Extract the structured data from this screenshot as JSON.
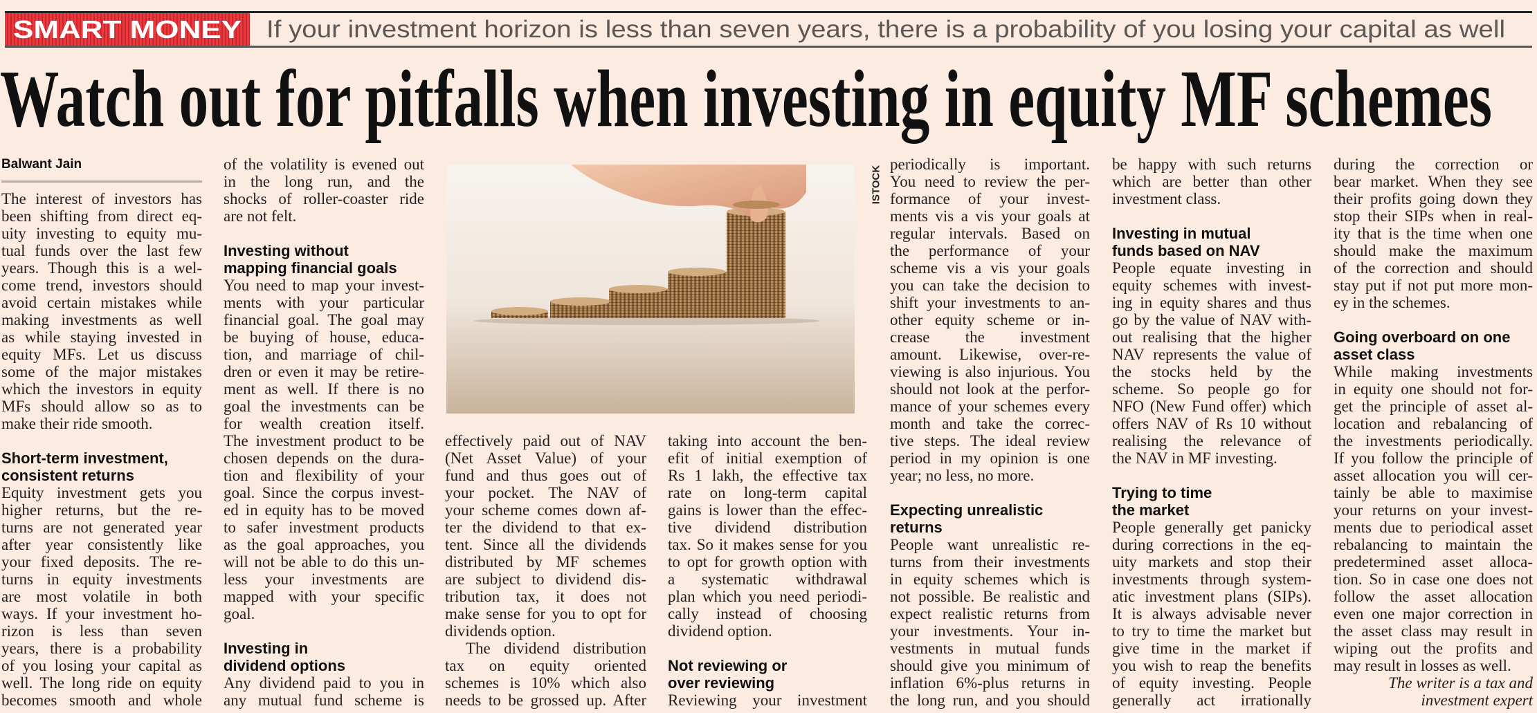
{
  "header": {
    "kicker": "SMART MONEY",
    "deck": "If your investment horizon is less than seven years, there is a probability of you losing your capital as well",
    "kicker_color": "#e8383d"
  },
  "headline": "Watch out for pitfalls when investing in equity MF schemes",
  "photo": {
    "credit": "ISTOCK",
    "description_icon": "coin-stacks-hand-photo"
  },
  "columns": [
    {
      "blocks": [
        {
          "type": "byline",
          "lines": [
            "Balwant Jain"
          ]
        },
        {
          "type": "rule"
        },
        {
          "type": "p",
          "lines": [
            "The interest of investors has",
            "been shifting from direct eq-",
            "uity investing to equity mu-",
            "tual funds over the last few",
            "years. Though this is a wel-",
            "come trend, investors should",
            "avoid certain mistakes while",
            "making investments as well",
            "as while staying invested in",
            "equity MFs. Let us discuss",
            "some of the major mistakes",
            "which the investors in equity",
            "MFs should allow so as to",
            "make their ride smooth."
          ]
        },
        {
          "type": "gap"
        },
        {
          "type": "h",
          "lines": [
            "Short-term investment,",
            "consistent returns"
          ]
        },
        {
          "type": "p",
          "cont": true,
          "lines": [
            "Equity investment gets you",
            "higher returns, but the re-",
            "turns are not generated year",
            "after year consistently like",
            "your fixed deposits. The re-",
            "turns in equity investments",
            "are most volatile in both",
            "ways. If your investment ho-",
            "rizon is less than seven",
            "years, there is a probability",
            "of you losing your capital as",
            "well. The long ride on equity",
            "becomes smooth and whole"
          ]
        }
      ]
    },
    {
      "blocks": [
        {
          "type": "p",
          "lines": [
            "of the volatility is evened out",
            "in the long run, and the",
            "shocks of roller-coaster ride",
            "are not felt."
          ]
        },
        {
          "type": "gap"
        },
        {
          "type": "h",
          "lines": [
            "Investing without",
            "mapping financial goals"
          ]
        },
        {
          "type": "p",
          "lines": [
            "You need to map your invest-",
            "ments with your particular",
            "financial goal. The goal may",
            "be buying of house, educa-",
            "tion, and marriage of chil-",
            "dren or even it may be retire-",
            "ment as well. If there is no",
            "goal the investments can be",
            "for wealth creation itself.",
            "The investment product to be",
            "chosen depends on the dura-",
            "tion and flexibility of your",
            "goal. Since the corpus invest-",
            "ed in equity has to be moved",
            "to safer investment products",
            "as the goal approaches, you",
            "will not be able to do this un-",
            "less your investments are",
            "mapped with your specific",
            "goal."
          ]
        },
        {
          "type": "gap"
        },
        {
          "type": "h",
          "lines": [
            "Investing in",
            "dividend options"
          ]
        },
        {
          "type": "p",
          "cont": true,
          "lines": [
            "Any dividend paid to you in",
            "any mutual fund scheme is"
          ]
        }
      ]
    },
    {
      "blocks": [
        {
          "type": "p",
          "lines": [
            "effectively paid out of NAV",
            "(Net Asset Value) of your",
            "fund and thus goes out of",
            "your pocket. The NAV of",
            "your scheme comes down af-",
            "ter the dividend to that ex-",
            "tent. Since all the dividends",
            "distributed by MF schemes",
            "are subject to dividend dis-",
            "tribution tax, it does not",
            "make sense for you to opt for",
            "dividends option."
          ]
        },
        {
          "type": "p",
          "indent": true,
          "cont": true,
          "lines": [
            "The dividend distribution",
            "tax on equity oriented",
            "schemes is 10% which also",
            "needs to be grossed up. After"
          ]
        }
      ]
    },
    {
      "blocks": [
        {
          "type": "p",
          "lines": [
            "taking into account the ben-",
            "efit of initial exemption of",
            "Rs 1 lakh, the effective tax",
            "rate on long-term capital",
            "gains is lower than the effec-",
            "tive dividend distribution",
            "tax. So it makes sense for you",
            "to opt for growth option with",
            "a systematic withdrawal",
            "plan which you need periodi-",
            "cally instead of choosing",
            "dividend option."
          ]
        },
        {
          "type": "gap"
        },
        {
          "type": "h",
          "lines": [
            "Not reviewing or",
            "over reviewing"
          ]
        },
        {
          "type": "p",
          "cont": true,
          "lines": [
            "Reviewing your investment"
          ]
        }
      ]
    },
    {
      "blocks": [
        {
          "type": "p",
          "lines": [
            "periodically is important.",
            "You need to review the per-",
            "formance of your invest-",
            "ments vis a vis your goals at",
            "regular intervals. Based on",
            "the performance of your",
            "scheme vis a vis your goals",
            "you can take the decision to",
            "shift your investments to an-",
            "other equity scheme or in-",
            "crease the investment",
            "amount. Likewise, over-re-",
            "viewing is also injurious. You",
            "should not look at the perfor-",
            "mance of your schemes every",
            "month and take the correc-",
            "tive steps. The ideal review",
            "period in my opinion is one",
            "year; no less, no more."
          ]
        },
        {
          "type": "gap"
        },
        {
          "type": "h",
          "lines": [
            "Expecting unrealistic",
            "returns"
          ]
        },
        {
          "type": "p",
          "cont": true,
          "lines": [
            "People want unrealistic re-",
            "turns from their investments",
            "in equity schemes which is",
            "not possible. Be realistic and",
            "expect realistic returns from",
            "your investments. Your in-",
            "vestments in mutual funds",
            "should give you minimum of",
            "inflation 6%-plus returns in",
            "the long run, and you should"
          ]
        }
      ]
    },
    {
      "blocks": [
        {
          "type": "p",
          "lines": [
            "be happy with such returns",
            "which are better than other",
            "investment class."
          ]
        },
        {
          "type": "gap"
        },
        {
          "type": "h",
          "lines": [
            "Investing in mutual",
            "funds based on NAV"
          ]
        },
        {
          "type": "p",
          "lines": [
            "People equate investing in",
            "equity schemes with invest-",
            "ing in equity shares and thus",
            "go by the value of NAV with-",
            "out realising that the higher",
            "NAV represents the value of",
            "the stocks held by the",
            "scheme. So people go for",
            "NFO (New Fund offer) which",
            "offers NAV of Rs 10 without",
            "realising the relevance of",
            "the NAV in MF investing."
          ]
        },
        {
          "type": "gap"
        },
        {
          "type": "h",
          "lines": [
            "Trying to time",
            "the market"
          ]
        },
        {
          "type": "p",
          "cont": true,
          "lines": [
            "People generally get panicky",
            "during corrections in the eq-",
            "uity markets and stop their",
            "investments through system-",
            "atic investment plans (SIPs).",
            "It is always advisable never",
            "to try to time the market but",
            "give time in the market if",
            "you wish to reap the benefits",
            "of equity investing. People",
            "generally act irrationally"
          ]
        }
      ]
    },
    {
      "blocks": [
        {
          "type": "p",
          "lines": [
            "during the correction or",
            "bear market. When they see",
            "their profits going down they",
            "stop their SIPs when in real-",
            "ity that is the time when one",
            "should make the maximum",
            "of the correction and should",
            "stay put if not put more mon-",
            "ey in the schemes."
          ]
        },
        {
          "type": "gap"
        },
        {
          "type": "h",
          "lines": [
            "Going overboard on one",
            "asset class"
          ]
        },
        {
          "type": "p",
          "lines": [
            "While making investments",
            "in equity one should not for-",
            "get the principle of asset al-",
            "location and rebalancing of",
            "the investments periodically.",
            "If you follow the principle of",
            "asset allocation you will cer-",
            "tainly be able to maximise",
            "your returns on your invest-",
            "ments due to periodical asset",
            "rebalancing to maintain the",
            "predetermined asset alloca-",
            "tion. So in case one does not",
            "follow the asset allocation",
            "even one major correction in",
            "the asset class may result in",
            "wiping out the profits and",
            "may result in losses as well."
          ]
        },
        {
          "type": "credit",
          "lines": [
            "The writer is a tax and",
            "investment expert"
          ]
        }
      ]
    }
  ]
}
